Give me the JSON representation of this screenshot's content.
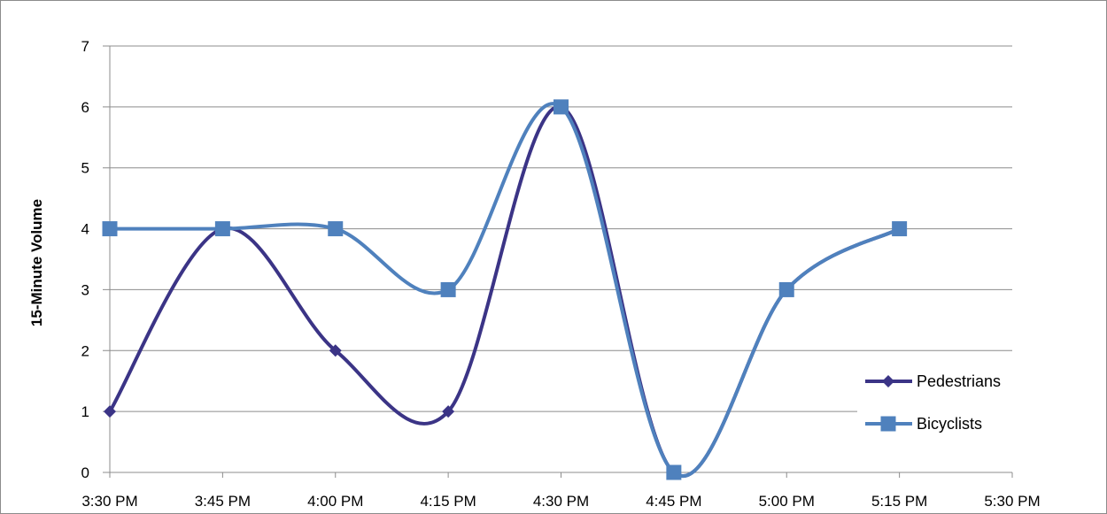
{
  "chart_data": {
    "type": "line",
    "ylabel": "15-Minute Volume",
    "xlabel": "",
    "categories": [
      "3:30 PM",
      "3:45 PM",
      "4:00 PM",
      "4:15 PM",
      "4:30 PM",
      "4:45 PM",
      "5:00 PM",
      "5:15 PM",
      "5:30 PM"
    ],
    "ylim": [
      0,
      7
    ],
    "yticks": [
      "0",
      "1",
      "2",
      "3",
      "4",
      "5",
      "6",
      "7"
    ],
    "smooth": true,
    "grid": true,
    "legend_position": "bottom-right",
    "series": [
      {
        "name": "Pedestrians",
        "values": [
          1,
          4,
          2,
          1,
          6,
          0,
          3,
          4,
          null
        ],
        "color": "#3b3486",
        "marker": "diamond"
      },
      {
        "name": "Bicyclists",
        "values": [
          4,
          4,
          4,
          3,
          6,
          0,
          3,
          4,
          null
        ],
        "color": "#4f81bd",
        "marker": "square"
      }
    ]
  }
}
